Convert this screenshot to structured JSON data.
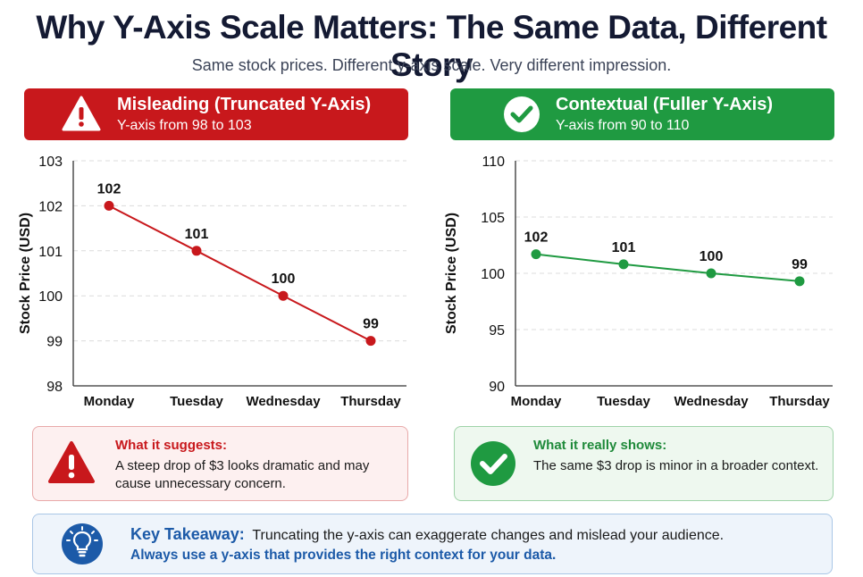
{
  "title": "Why Y-Axis Scale Matters: The Same Data, Different Story",
  "subtitle": "Same stock prices. Different y-axis scale. Very different impression.",
  "left_banner": {
    "heading": "Misleading (Truncated Y-Axis)",
    "sub": "Y-axis from 98 to 103",
    "icon": "warning-icon",
    "color": "#c8181c"
  },
  "right_banner": {
    "heading": "Contextual (Fuller Y-Axis)",
    "sub": "Y-axis from 90 to 110",
    "icon": "check-icon",
    "color": "#1f9a41"
  },
  "chart_data": [
    {
      "type": "line",
      "categories": [
        "Monday",
        "Tuesday",
        "Wednesday",
        "Thursday"
      ],
      "values": [
        102,
        101,
        100,
        99
      ],
      "data_labels": [
        "102",
        "101",
        "100",
        "99"
      ],
      "ylabel": "Stock Price (USD)",
      "ylim": [
        98,
        103
      ],
      "yticks": [
        98,
        99,
        100,
        101,
        102,
        103
      ],
      "grid": true,
      "color": "#c8181c"
    },
    {
      "type": "line",
      "categories": [
        "Monday",
        "Tuesday",
        "Wednesday",
        "Thursday"
      ],
      "values": [
        101.7,
        100.8,
        100,
        99.3
      ],
      "data_labels": [
        "102",
        "101",
        "100",
        "99"
      ],
      "ylabel": "Stock Price (USD)",
      "ylim": [
        90,
        110
      ],
      "yticks": [
        90,
        95,
        100,
        105,
        110
      ],
      "grid": true,
      "color": "#1f9a41"
    }
  ],
  "left_note": {
    "heading": "What it suggests:",
    "body": "A steep drop of $3 looks dramatic and may cause unnecessary concern.",
    "icon": "warning-icon"
  },
  "right_note": {
    "heading": "What it really shows:",
    "body": "The same $3 drop is minor in a broader context.",
    "icon": "check-icon"
  },
  "takeaway": {
    "label": "Key Takeaway:",
    "text": "Truncating the y-axis can exaggerate changes and mislead your audience.",
    "line2": "Always use a y-axis that provides the right context for your data.",
    "icon": "lightbulb-icon",
    "color": "#1c5aa8"
  }
}
